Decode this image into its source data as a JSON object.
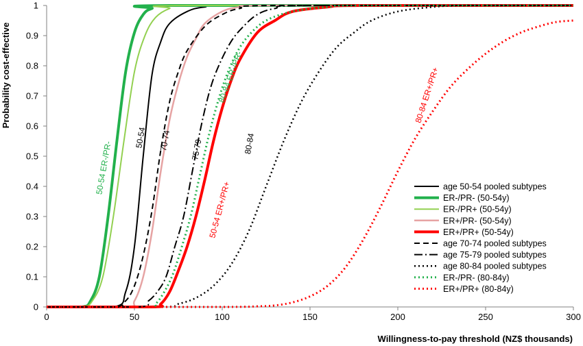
{
  "chart_data": {
    "type": "line",
    "xlabel": "Willingness-to-pay threshold (NZ$ thousands)",
    "ylabel": "Probability  cost-effective",
    "xlim": [
      0,
      300
    ],
    "ylim": [
      0,
      1
    ],
    "x_ticks": [
      "0",
      "50",
      "100",
      "150",
      "200",
      "250",
      "300"
    ],
    "y_ticks": [
      "0",
      "0.1",
      "0.2",
      "0.3",
      "0.4",
      "0.5",
      "0.6",
      "0.7",
      "0.8",
      "0.9",
      "1"
    ],
    "grid": false,
    "legend_position": "right",
    "series": [
      {
        "name": "age 50-54 pooled subtypes",
        "color": "#000000",
        "dash": "solid",
        "width": 2,
        "points": [
          [
            0,
            0
          ],
          [
            38,
            0
          ],
          [
            45,
            0.05
          ],
          [
            50,
            0.2
          ],
          [
            55,
            0.5
          ],
          [
            60,
            0.77
          ],
          [
            65,
            0.88
          ],
          [
            70,
            0.94
          ],
          [
            80,
            0.98
          ],
          [
            90,
            0.995
          ],
          [
            110,
            1
          ],
          [
            300,
            1
          ]
        ]
      },
      {
        "name": "ER-/PR- (50-54y)",
        "color": "#22b14c",
        "dash": "solid",
        "width": 4,
        "points": [
          [
            0,
            0
          ],
          [
            20,
            0
          ],
          [
            25,
            0.02
          ],
          [
            30,
            0.1
          ],
          [
            35,
            0.3
          ],
          [
            40,
            0.55
          ],
          [
            45,
            0.78
          ],
          [
            50,
            0.91
          ],
          [
            55,
            0.97
          ],
          [
            60,
            0.99
          ],
          [
            70,
            1
          ],
          [
            300,
            1
          ]
        ]
      },
      {
        "name": "ER-/PR+ (50-54y)",
        "color": "#92d050",
        "dash": "solid",
        "width": 2,
        "points": [
          [
            0,
            0
          ],
          [
            20,
            0
          ],
          [
            26,
            0.02
          ],
          [
            32,
            0.1
          ],
          [
            38,
            0.3
          ],
          [
            44,
            0.55
          ],
          [
            50,
            0.78
          ],
          [
            56,
            0.9
          ],
          [
            62,
            0.96
          ],
          [
            70,
            0.99
          ],
          [
            80,
            1
          ],
          [
            300,
            1
          ]
        ]
      },
      {
        "name": "ER+/PR- (50-54y)",
        "color": "#e6a3a3",
        "dash": "solid",
        "width": 2.5,
        "points": [
          [
            0,
            0
          ],
          [
            45,
            0
          ],
          [
            50,
            0.02
          ],
          [
            55,
            0.1
          ],
          [
            60,
            0.25
          ],
          [
            65,
            0.45
          ],
          [
            70,
            0.62
          ],
          [
            75,
            0.74
          ],
          [
            80,
            0.83
          ],
          [
            85,
            0.89
          ],
          [
            90,
            0.94
          ],
          [
            100,
            0.98
          ],
          [
            110,
            0.995
          ],
          [
            130,
            1
          ],
          [
            300,
            1
          ]
        ]
      },
      {
        "name": "ER+/PR+ (50-54y)",
        "color": "#ff0000",
        "dash": "solid",
        "width": 4,
        "points": [
          [
            0,
            0
          ],
          [
            60,
            0
          ],
          [
            65,
            0.01
          ],
          [
            70,
            0.05
          ],
          [
            75,
            0.12
          ],
          [
            80,
            0.2
          ],
          [
            85,
            0.3
          ],
          [
            90,
            0.42
          ],
          [
            95,
            0.55
          ],
          [
            100,
            0.66
          ],
          [
            105,
            0.75
          ],
          [
            110,
            0.82
          ],
          [
            120,
            0.91
          ],
          [
            130,
            0.95
          ],
          [
            140,
            0.98
          ],
          [
            160,
            0.995
          ],
          [
            180,
            1
          ],
          [
            300,
            1
          ]
        ]
      },
      {
        "name": "age 70-74 pooled subtypes",
        "color": "#000000",
        "dash": "8,5",
        "width": 2,
        "points": [
          [
            0,
            0
          ],
          [
            38,
            0
          ],
          [
            45,
            0.02
          ],
          [
            50,
            0.07
          ],
          [
            55,
            0.17
          ],
          [
            60,
            0.32
          ],
          [
            65,
            0.52
          ],
          [
            70,
            0.68
          ],
          [
            75,
            0.78
          ],
          [
            80,
            0.85
          ],
          [
            90,
            0.93
          ],
          [
            100,
            0.97
          ],
          [
            110,
            0.99
          ],
          [
            130,
            1
          ],
          [
            300,
            1
          ]
        ]
      },
      {
        "name": "age 75-79 pooled subtypes",
        "color": "#000000",
        "dash": "12,4,2,4",
        "width": 2,
        "points": [
          [
            0,
            0
          ],
          [
            52,
            0
          ],
          [
            58,
            0.02
          ],
          [
            63,
            0.05
          ],
          [
            68,
            0.1
          ],
          [
            73,
            0.2
          ],
          [
            78,
            0.3
          ],
          [
            83,
            0.45
          ],
          [
            88,
            0.6
          ],
          [
            93,
            0.72
          ],
          [
            98,
            0.8
          ],
          [
            105,
            0.88
          ],
          [
            112,
            0.93
          ],
          [
            120,
            0.97
          ],
          [
            130,
            0.99
          ],
          [
            150,
            1
          ],
          [
            300,
            1
          ]
        ]
      },
      {
        "name": "age 80-84 pooled subtypes",
        "color": "#000000",
        "dash": "2,4",
        "width": 2.5,
        "points": [
          [
            0,
            0
          ],
          [
            65,
            0
          ],
          [
            75,
            0.01
          ],
          [
            85,
            0.03
          ],
          [
            95,
            0.07
          ],
          [
            105,
            0.14
          ],
          [
            115,
            0.25
          ],
          [
            125,
            0.4
          ],
          [
            135,
            0.55
          ],
          [
            145,
            0.68
          ],
          [
            155,
            0.78
          ],
          [
            165,
            0.86
          ],
          [
            175,
            0.91
          ],
          [
            185,
            0.95
          ],
          [
            200,
            0.98
          ],
          [
            220,
            0.995
          ],
          [
            240,
            1
          ],
          [
            300,
            1
          ]
        ]
      },
      {
        "name": "ER-/PR- (80-84y)",
        "color": "#22b14c",
        "dash": "2,4",
        "width": 3,
        "points": [
          [
            0,
            0
          ],
          [
            57,
            0
          ],
          [
            62,
            0.01
          ],
          [
            67,
            0.05
          ],
          [
            72,
            0.11
          ],
          [
            77,
            0.2
          ],
          [
            82,
            0.3
          ],
          [
            87,
            0.43
          ],
          [
            92,
            0.56
          ],
          [
            97,
            0.67
          ],
          [
            102,
            0.76
          ],
          [
            108,
            0.84
          ],
          [
            115,
            0.9
          ],
          [
            125,
            0.95
          ],
          [
            140,
            0.98
          ],
          [
            160,
            0.995
          ],
          [
            180,
            1
          ],
          [
            300,
            1
          ]
        ]
      },
      {
        "name": "ER+/PR+ (80-84y)",
        "color": "#ff0000",
        "dash": "2,4",
        "width": 3,
        "points": [
          [
            0,
            0
          ],
          [
            100,
            0
          ],
          [
            120,
            0.002
          ],
          [
            130,
            0.005
          ],
          [
            140,
            0.015
          ],
          [
            150,
            0.035
          ],
          [
            160,
            0.07
          ],
          [
            170,
            0.13
          ],
          [
            180,
            0.22
          ],
          [
            190,
            0.33
          ],
          [
            200,
            0.45
          ],
          [
            210,
            0.56
          ],
          [
            220,
            0.65
          ],
          [
            230,
            0.73
          ],
          [
            240,
            0.79
          ],
          [
            250,
            0.84
          ],
          [
            260,
            0.88
          ],
          [
            270,
            0.91
          ],
          [
            280,
            0.93
          ],
          [
            290,
            0.945
          ],
          [
            300,
            0.95
          ]
        ]
      }
    ],
    "annotations": [
      {
        "text": "50-54 ER-/PR-",
        "color": "#22b14c",
        "x": 34,
        "y": 0.46,
        "angle": -80
      },
      {
        "text": "50-54",
        "color": "#000000",
        "x": 55,
        "y": 0.56,
        "angle": -80
      },
      {
        "text": "70-74",
        "color": "#000000",
        "x": 69,
        "y": 0.55,
        "angle": -80
      },
      {
        "text": "75-79",
        "color": "#000000",
        "x": 87,
        "y": 0.52,
        "angle": -80
      },
      {
        "text": "80-84 ER-/PR-",
        "color": "#22b14c",
        "x": 106,
        "y": 0.76,
        "angle": -70
      },
      {
        "text": "50-54 ER+/PR+",
        "color": "#ff0000",
        "x": 100,
        "y": 0.32,
        "angle": -75
      },
      {
        "text": "80-84",
        "color": "#000000",
        "x": 117,
        "y": 0.54,
        "angle": -80
      },
      {
        "text": "80-84 ER+/PR+",
        "color": "#ff0000",
        "x": 218,
        "y": 0.7,
        "angle": -72
      }
    ]
  }
}
